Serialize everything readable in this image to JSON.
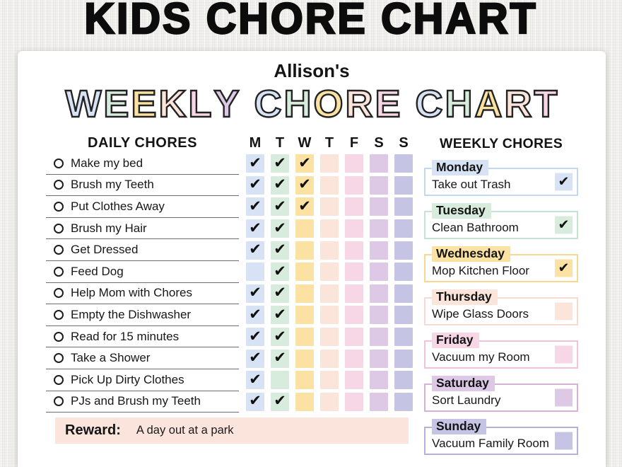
{
  "banner": {
    "title": "KIDS CHORE CHART"
  },
  "owner": "Allison's",
  "bubble_title": {
    "words": [
      {
        "letters": [
          {
            "ch": "W",
            "color": "blue"
          },
          {
            "ch": "E",
            "color": "green"
          },
          {
            "ch": "E",
            "color": "yellow"
          },
          {
            "ch": "K",
            "color": "peach"
          },
          {
            "ch": "L",
            "color": "pink"
          },
          {
            "ch": "Y",
            "color": "purple"
          }
        ]
      },
      {
        "letters": [
          {
            "ch": "C",
            "color": "blue"
          },
          {
            "ch": "H",
            "color": "green"
          },
          {
            "ch": "O",
            "color": "yellow"
          },
          {
            "ch": "R",
            "color": "peach"
          },
          {
            "ch": "E",
            "color": "pink"
          }
        ]
      },
      {
        "letters": [
          {
            "ch": "C",
            "color": "blue"
          },
          {
            "ch": "H",
            "color": "green"
          },
          {
            "ch": "A",
            "color": "yellow"
          },
          {
            "ch": "R",
            "color": "peach"
          },
          {
            "ch": "T",
            "color": "pink"
          }
        ]
      }
    ]
  },
  "palette": {
    "blue": "#d7e3f4",
    "green": "#d8ecdd",
    "yellow": "#fbe2a3",
    "peach": "#fbe4da",
    "pink": "#f7d6e5",
    "purple": "#ddc8e6",
    "periwinkle": "#c6c4e4"
  },
  "daily": {
    "heading": "DAILY CHORES",
    "day_headers": [
      {
        "label": "M",
        "color": "blue"
      },
      {
        "label": "T",
        "color": "green"
      },
      {
        "label": "W",
        "color": "yellow"
      },
      {
        "label": "T",
        "color": "peach"
      },
      {
        "label": "F",
        "color": "pink"
      },
      {
        "label": "S",
        "color": "purple"
      },
      {
        "label": "S",
        "color": "periwinkle"
      }
    ],
    "chores": [
      {
        "label": "Make my bed",
        "checks": [
          true,
          true,
          true,
          false,
          false,
          false,
          false
        ]
      },
      {
        "label": "Brush my Teeth",
        "checks": [
          true,
          true,
          true,
          false,
          false,
          false,
          false
        ]
      },
      {
        "label": "Put Clothes Away",
        "checks": [
          true,
          true,
          true,
          false,
          false,
          false,
          false
        ]
      },
      {
        "label": "Brush my Hair",
        "checks": [
          true,
          true,
          false,
          false,
          false,
          false,
          false
        ]
      },
      {
        "label": "Get Dressed",
        "checks": [
          true,
          true,
          false,
          false,
          false,
          false,
          false
        ]
      },
      {
        "label": "Feed Dog",
        "checks": [
          false,
          true,
          false,
          false,
          false,
          false,
          false
        ]
      },
      {
        "label": "Help Mom with Chores",
        "checks": [
          true,
          true,
          false,
          false,
          false,
          false,
          false
        ]
      },
      {
        "label": "Empty the Dishwasher",
        "checks": [
          true,
          true,
          false,
          false,
          false,
          false,
          false
        ]
      },
      {
        "label": "Read for 15 minutes",
        "checks": [
          true,
          true,
          false,
          false,
          false,
          false,
          false
        ]
      },
      {
        "label": "Take a Shower",
        "checks": [
          true,
          true,
          false,
          false,
          false,
          false,
          false
        ]
      },
      {
        "label": "Pick Up Dirty Clothes",
        "checks": [
          true,
          false,
          false,
          false,
          false,
          false,
          false
        ]
      },
      {
        "label": "PJs and Brush my Teeth",
        "checks": [
          true,
          true,
          false,
          false,
          false,
          false,
          false
        ]
      }
    ]
  },
  "weekly": {
    "heading": "WEEKLY CHORES",
    "items": [
      {
        "day": "Monday",
        "chore": "Take out Trash",
        "checked": true,
        "color": "blue",
        "border": "#c3d8f0"
      },
      {
        "day": "Tuesday",
        "chore": "Clean Bathroom",
        "checked": true,
        "color": "green",
        "border": "#c6e3d1"
      },
      {
        "day": "Wednesday",
        "chore": "Mop Kitchen Floor",
        "checked": true,
        "color": "yellow",
        "border": "#f5d992"
      },
      {
        "day": "Thursday",
        "chore": "Wipe Glass Doors",
        "checked": false,
        "color": "peach",
        "border": "#f7d9cf"
      },
      {
        "day": "Friday",
        "chore": "Vacuum my Room",
        "checked": false,
        "color": "pink",
        "border": "#f2c3d8"
      },
      {
        "day": "Saturday",
        "chore": "Sort Laundry",
        "checked": false,
        "color": "purple",
        "border": "#d5b2d4"
      },
      {
        "day": "Sunday",
        "chore": "Vacuum Family Room",
        "checked": false,
        "color": "periwinkle",
        "border": "#b4b2da"
      }
    ]
  },
  "reward": {
    "label": "Reward:",
    "value": "A day out at a park",
    "bg": "#fbe4dc"
  },
  "check_glyph": "✔"
}
